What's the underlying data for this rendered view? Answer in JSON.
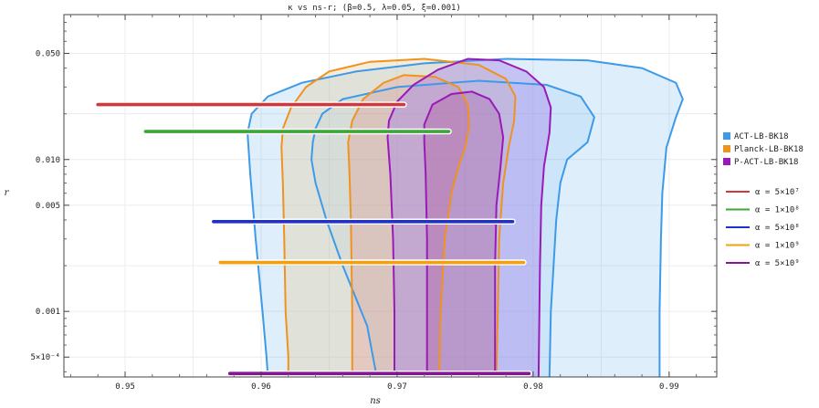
{
  "chart_data": {
    "type": "line",
    "title": "κ vs ns-r; (β=0.5, λ=0.05, ξ=0.001)",
    "xlabel": "ns",
    "ylabel": "r",
    "xlim": [
      0.9455,
      0.9935
    ],
    "ylim": [
      0.00037,
      0.09
    ],
    "y_scale": "log",
    "x_ticks": [
      0.95,
      0.96,
      0.97,
      0.98,
      0.99
    ],
    "x_tick_labels": [
      "0.95",
      "0.96",
      "0.97",
      "0.98",
      "0.99"
    ],
    "y_ticks": [
      0.0005,
      0.001,
      0.005,
      0.01,
      0.05
    ],
    "y_tick_labels": [
      "5×10⁻⁴",
      "0.001",
      "0.005",
      "0.010",
      "0.050"
    ],
    "grid": true,
    "legend_position": "right",
    "regions": [
      {
        "name": "ACT-LB-BK18",
        "color": "#3d9ae8",
        "outer": [
          [
            0.9605,
            0.00037
          ],
          [
            0.9604,
            0.0005
          ],
          [
            0.9601,
            0.001
          ],
          [
            0.9596,
            0.003
          ],
          [
            0.9592,
            0.008
          ],
          [
            0.959,
            0.015
          ],
          [
            0.9593,
            0.02
          ],
          [
            0.9605,
            0.026
          ],
          [
            0.963,
            0.032
          ],
          [
            0.967,
            0.038
          ],
          [
            0.972,
            0.043
          ],
          [
            0.978,
            0.046
          ],
          [
            0.984,
            0.045
          ],
          [
            0.988,
            0.04
          ],
          [
            0.9905,
            0.032
          ],
          [
            0.991,
            0.025
          ],
          [
            0.9905,
            0.019
          ],
          [
            0.9898,
            0.012
          ],
          [
            0.9895,
            0.006
          ],
          [
            0.9894,
            0.003
          ],
          [
            0.9893,
            0.001
          ],
          [
            0.9893,
            0.00037
          ]
        ],
        "inner": [
          [
            0.9685,
            0.00037
          ],
          [
            0.9678,
            0.0008
          ],
          [
            0.966,
            0.002
          ],
          [
            0.9648,
            0.004
          ],
          [
            0.964,
            0.007
          ],
          [
            0.9637,
            0.01
          ],
          [
            0.9638,
            0.013
          ],
          [
            0.964,
            0.016
          ],
          [
            0.9645,
            0.02
          ],
          [
            0.966,
            0.025
          ],
          [
            0.97,
            0.03
          ],
          [
            0.976,
            0.033
          ],
          [
            0.981,
            0.031
          ],
          [
            0.9835,
            0.026
          ],
          [
            0.9845,
            0.019
          ],
          [
            0.984,
            0.013
          ],
          [
            0.9825,
            0.01
          ],
          [
            0.982,
            0.007
          ],
          [
            0.9817,
            0.004
          ],
          [
            0.9815,
            0.002
          ],
          [
            0.9813,
            0.001
          ],
          [
            0.9812,
            0.00037
          ]
        ]
      },
      {
        "name": "Planck-LB-BK18",
        "color": "#f0921e",
        "outer": [
          [
            0.962,
            0.00037
          ],
          [
            0.962,
            0.0005
          ],
          [
            0.9618,
            0.001
          ],
          [
            0.9617,
            0.003
          ],
          [
            0.9616,
            0.007
          ],
          [
            0.9615,
            0.012
          ],
          [
            0.9616,
            0.016
          ],
          [
            0.9622,
            0.022
          ],
          [
            0.9633,
            0.03
          ],
          [
            0.965,
            0.038
          ],
          [
            0.968,
            0.044
          ],
          [
            0.972,
            0.046
          ],
          [
            0.976,
            0.042
          ],
          [
            0.978,
            0.034
          ],
          [
            0.9787,
            0.026
          ],
          [
            0.9786,
            0.018
          ],
          [
            0.9782,
            0.012
          ],
          [
            0.9778,
            0.007
          ],
          [
            0.9775,
            0.003
          ],
          [
            0.9774,
            0.001
          ],
          [
            0.9773,
            0.00037
          ]
        ],
        "inner": [
          [
            0.9667,
            0.00037
          ],
          [
            0.9667,
            0.001
          ],
          [
            0.9666,
            0.004
          ],
          [
            0.9665,
            0.008
          ],
          [
            0.9664,
            0.013
          ],
          [
            0.9667,
            0.018
          ],
          [
            0.9675,
            0.025
          ],
          [
            0.969,
            0.032
          ],
          [
            0.9705,
            0.036
          ],
          [
            0.9728,
            0.035
          ],
          [
            0.9745,
            0.03
          ],
          [
            0.9752,
            0.023
          ],
          [
            0.9753,
            0.017
          ],
          [
            0.975,
            0.012
          ],
          [
            0.9745,
            0.009
          ],
          [
            0.974,
            0.006
          ],
          [
            0.9735,
            0.003
          ],
          [
            0.9732,
            0.001
          ],
          [
            0.9731,
            0.00037
          ]
        ]
      },
      {
        "name": "P-ACT-LB-BK18",
        "color": "#9a1ab8",
        "outer": [
          [
            0.9698,
            0.00037
          ],
          [
            0.9698,
            0.001
          ],
          [
            0.9697,
            0.003
          ],
          [
            0.9695,
            0.008
          ],
          [
            0.9693,
            0.014
          ],
          [
            0.9694,
            0.018
          ],
          [
            0.97,
            0.024
          ],
          [
            0.9712,
            0.031
          ],
          [
            0.973,
            0.039
          ],
          [
            0.9752,
            0.046
          ],
          [
            0.9775,
            0.045
          ],
          [
            0.9795,
            0.038
          ],
          [
            0.9808,
            0.03
          ],
          [
            0.9813,
            0.022
          ],
          [
            0.9812,
            0.015
          ],
          [
            0.9808,
            0.009
          ],
          [
            0.9806,
            0.005
          ],
          [
            0.9805,
            0.002
          ],
          [
            0.9804,
            0.00037
          ]
        ],
        "inner": [
          [
            0.9722,
            0.00037
          ],
          [
            0.9722,
            0.001
          ],
          [
            0.9722,
            0.003
          ],
          [
            0.9721,
            0.008
          ],
          [
            0.972,
            0.013
          ],
          [
            0.972,
            0.017
          ],
          [
            0.9726,
            0.023
          ],
          [
            0.974,
            0.027
          ],
          [
            0.9755,
            0.028
          ],
          [
            0.9768,
            0.025
          ],
          [
            0.9775,
            0.02
          ],
          [
            0.9778,
            0.014
          ],
          [
            0.9776,
            0.009
          ],
          [
            0.9773,
            0.005
          ],
          [
            0.9772,
            0.002
          ],
          [
            0.9772,
            0.00037
          ]
        ]
      }
    ],
    "series": [
      {
        "name": "α = 5×10⁷",
        "color": "#d0393b",
        "x": [
          0.948,
          0.9705
        ],
        "y": [
          0.023,
          0.023
        ]
      },
      {
        "name": "α = 1×10⁸",
        "color": "#3fa43a",
        "x": [
          0.9515,
          0.9738
        ],
        "y": [
          0.0153,
          0.0153
        ]
      },
      {
        "name": "α = 5×10⁸",
        "color": "#1f2fd0",
        "x": [
          0.9565,
          0.9785
        ],
        "y": [
          0.0039,
          0.0039
        ]
      },
      {
        "name": "α = 1×10⁹",
        "color": "#f2a010",
        "x": [
          0.957,
          0.9793
        ],
        "y": [
          0.0021,
          0.0021
        ]
      },
      {
        "name": "α = 5×10⁹",
        "color": "#8a1499",
        "x": [
          0.9577,
          0.9797
        ],
        "y": [
          0.00039,
          0.00039
        ]
      }
    ]
  }
}
